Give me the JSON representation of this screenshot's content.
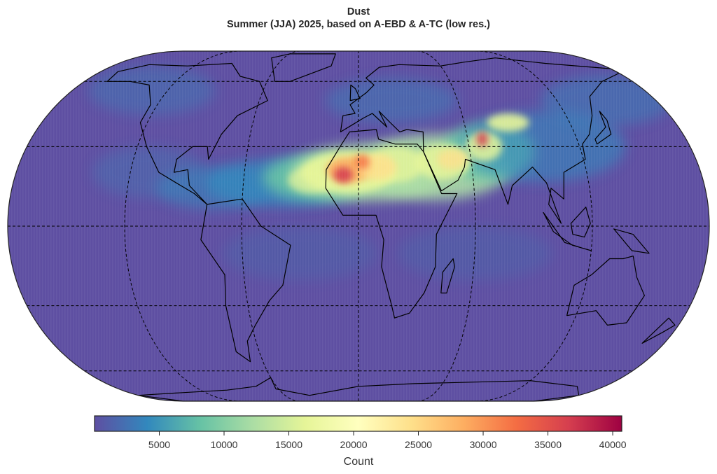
{
  "figure": {
    "title": "Dust",
    "subtitle": "Summer (JJA) 2025, based on A-EBD & A-TC (low res.)"
  },
  "chart_data": {
    "type": "heatmap",
    "map_projection": "Eckert IV",
    "central_longitude": 0,
    "graticule": {
      "latitudes": [
        -60,
        -30,
        0,
        30,
        60
      ],
      "longitudes": [
        -120,
        -60,
        0,
        60,
        120
      ],
      "style": "dashed black"
    },
    "background_color": "#5e4fa2",
    "colormap": "Spectral_r",
    "colormap_stops": [
      "#5e4fa2",
      "#3288bd",
      "#66c2a5",
      "#abdda4",
      "#e6f598",
      "#ffffbf",
      "#fee08b",
      "#fdae61",
      "#f46d43",
      "#d53e4f",
      "#9e0142"
    ],
    "colorbar": {
      "label": "Count",
      "range": [
        0,
        40700
      ],
      "ticks": [
        5000,
        10000,
        15000,
        20000,
        25000,
        30000,
        35000,
        40000
      ],
      "tick_labels": [
        "5000",
        "10000",
        "15000",
        "20000",
        "25000",
        "30000",
        "35000",
        "40000"
      ],
      "orientation": "horizontal",
      "placement": "bottom"
    }
  }
}
